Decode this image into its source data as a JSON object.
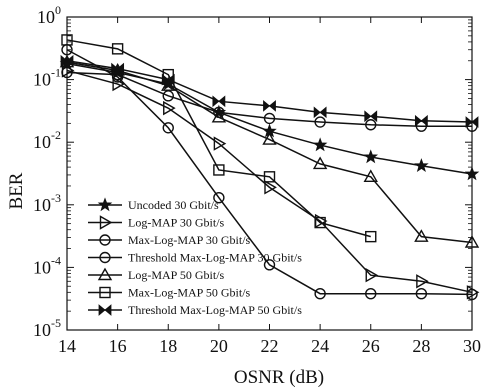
{
  "chart_data": {
    "type": "line",
    "xlabel": "OSNR (dB)",
    "ylabel": "BER",
    "x": [
      14,
      16,
      18,
      20,
      22,
      24,
      26,
      28,
      30
    ],
    "xlim": [
      14,
      30
    ],
    "ylim": [
      1e-05,
      1
    ],
    "yscale": "log",
    "x_ticks": [
      14,
      16,
      18,
      20,
      22,
      24,
      26,
      28,
      30
    ],
    "y_ticks": [
      {
        "value": 1,
        "base": "10",
        "exp": "0"
      },
      {
        "value": 0.1,
        "base": "10",
        "exp": "-1"
      },
      {
        "value": 0.01,
        "base": "10",
        "exp": "-2"
      },
      {
        "value": 0.001,
        "base": "10",
        "exp": "-3"
      },
      {
        "value": 0.0001,
        "base": "10",
        "exp": "-4"
      },
      {
        "value": 1e-05,
        "base": "10",
        "exp": "-5"
      }
    ],
    "grid": false,
    "legend_position": "bottom-left",
    "series": [
      {
        "name": "Uncoded 30 Gbit/s",
        "marker": "star",
        "x": [
          14,
          16,
          18,
          20,
          22,
          24,
          26,
          28,
          30
        ],
        "values": [
          0.18,
          0.13,
          0.085,
          0.03,
          0.015,
          0.009,
          0.0058,
          0.0042,
          0.0031
        ]
      },
      {
        "name": "Log-MAP 30 Gbit/s",
        "marker": "triangle-right",
        "x": [
          14,
          16,
          18,
          20,
          22,
          24,
          26,
          28,
          30
        ],
        "values": [
          0.14,
          0.085,
          0.035,
          0.0095,
          0.0019,
          0.00055,
          7.5e-05,
          6e-05,
          4e-05
        ]
      },
      {
        "name": "Max-Log-MAP 30 Gbit/s",
        "marker": "circle",
        "x": [
          14,
          16,
          18,
          20,
          22,
          24,
          26,
          28,
          30
        ],
        "values": [
          0.3,
          0.11,
          0.017,
          0.0013,
          0.00011,
          3.8e-05,
          3.8e-05,
          3.8e-05,
          3.7e-05
        ]
      },
      {
        "name": "Threshold Max-Log-MAP 30 Gbit/s",
        "marker": "circle",
        "x": [
          14,
          16,
          18,
          20,
          22,
          24,
          26,
          28,
          30
        ],
        "values": [
          0.13,
          0.12,
          0.055,
          0.03,
          0.024,
          0.021,
          0.019,
          0.018,
          0.018
        ]
      },
      {
        "name": "Log-MAP 50 Gbit/s",
        "marker": "triangle-up",
        "x": [
          14,
          16,
          18,
          20,
          22,
          24,
          26,
          28,
          30
        ],
        "values": [
          0.19,
          0.14,
          0.08,
          0.025,
          0.011,
          0.0045,
          0.0028,
          0.00031,
          0.00025
        ]
      },
      {
        "name": "Max-Log-MAP 50 Gbit/s",
        "marker": "square",
        "x": [
          14,
          16,
          18,
          20,
          22,
          24,
          26
        ],
        "values": [
          0.43,
          0.31,
          0.12,
          0.0036,
          0.0028,
          0.00052,
          0.00031
        ]
      },
      {
        "name": "Threshold Max-Log-MAP 50 Gbit/s",
        "marker": "bowtie",
        "x": [
          14,
          16,
          18,
          20,
          22,
          24,
          26,
          28,
          30
        ],
        "values": [
          0.2,
          0.15,
          0.1,
          0.045,
          0.038,
          0.03,
          0.026,
          0.022,
          0.021
        ]
      }
    ]
  }
}
